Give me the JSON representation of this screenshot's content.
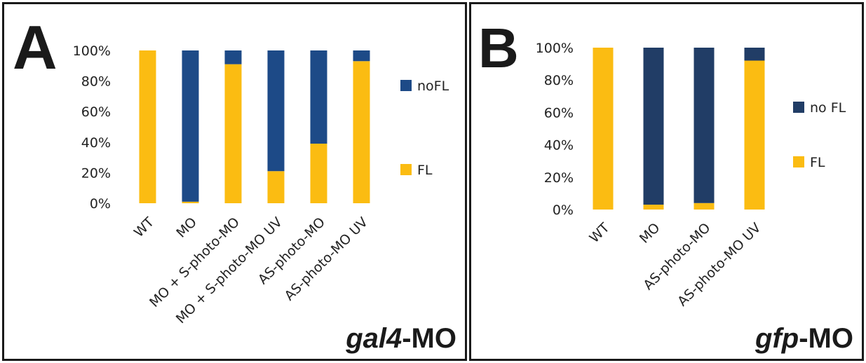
{
  "colors": {
    "fl": "#fbbc12",
    "nofl_a": "#1d4a87",
    "nofl_b": "#213d66",
    "frame": "#1a1a1a",
    "text": "#222222"
  },
  "chart_data": [
    {
      "type": "bar",
      "stacked": true,
      "panel_letter": "A",
      "footer": {
        "gene": "gal4",
        "suffix": "-MO"
      },
      "categories": [
        "WT",
        "MO",
        "MO + S-photo-MO",
        "MO + S-photo-MO UV",
        "AS-photo-MO",
        "AS-photo-MO UV"
      ],
      "series": [
        {
          "name": "FL",
          "values": [
            100,
            1,
            91,
            21,
            39,
            93
          ]
        },
        {
          "name": "noFL",
          "values": [
            0,
            99,
            9,
            79,
            61,
            7
          ]
        }
      ],
      "y_ticks": [
        "0%",
        "20%",
        "40%",
        "60%",
        "80%",
        "100%"
      ],
      "ylim": [
        0,
        100
      ],
      "legend": "right",
      "grid": false
    },
    {
      "type": "bar",
      "stacked": true,
      "panel_letter": "B",
      "footer": {
        "gene": "gfp",
        "suffix": "-MO"
      },
      "categories": [
        "WT",
        "MO",
        "AS-photo-MO",
        "AS-photo-MO UV"
      ],
      "series": [
        {
          "name": "FL",
          "values": [
            100,
            3,
            4,
            92
          ]
        },
        {
          "name": "no FL",
          "values": [
            0,
            97,
            96,
            8
          ]
        }
      ],
      "y_ticks": [
        "0%",
        "20%",
        "40%",
        "60%",
        "80%",
        "100%"
      ],
      "ylim": [
        0,
        100
      ],
      "legend": "right",
      "grid": false
    }
  ]
}
